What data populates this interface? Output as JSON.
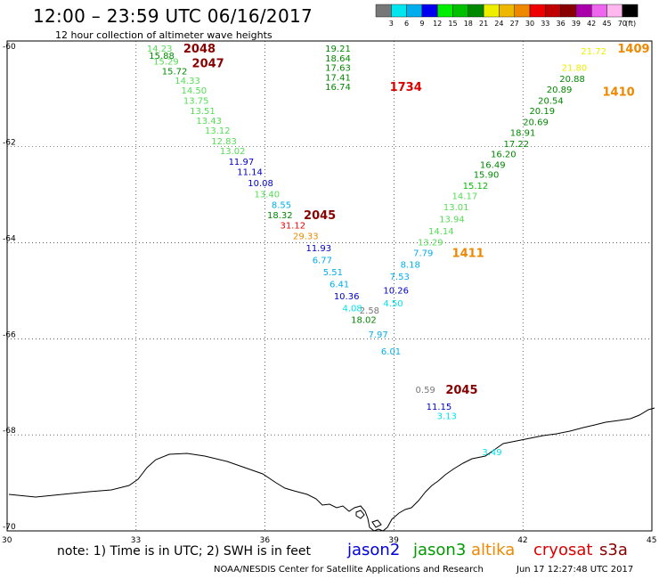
{
  "header": {
    "title": "12:00 – 23:59 UTC 06/16/2017",
    "subtitle": "12 hour collection of altimeter wave heights"
  },
  "legend": {
    "unit_label": "(ft)",
    "colors": [
      "#777777",
      "#00e5ee",
      "#00aeee",
      "#0000ee",
      "#00ee00",
      "#00c000",
      "#008800",
      "#eeee00",
      "#eeb800",
      "#ee8800",
      "#ee0000",
      "#c00000",
      "#880000",
      "#aa00aa",
      "#ee66ee",
      "#ffb8ee",
      "#000000"
    ],
    "labels": [
      "3",
      "6",
      "9",
      "12",
      "15",
      "18",
      "21",
      "24",
      "27",
      "30",
      "33",
      "36",
      "39",
      "42",
      "45",
      "70"
    ]
  },
  "axes": {
    "lat_labels": [
      {
        "lat": -60,
        "text": "-60"
      },
      {
        "lat": -62,
        "text": "-62"
      },
      {
        "lat": -64,
        "text": "-64"
      },
      {
        "lat": -66,
        "text": "-66"
      },
      {
        "lat": -68,
        "text": "-68"
      },
      {
        "lat": -70,
        "text": "-70"
      }
    ],
    "lon_labels": [
      {
        "lon": 30,
        "text": "30"
      },
      {
        "lon": 33,
        "text": "33"
      },
      {
        "lon": 36,
        "text": "36"
      },
      {
        "lon": 39,
        "text": "39"
      },
      {
        "lon": 42,
        "text": "42"
      },
      {
        "lon": 45,
        "text": "45"
      }
    ]
  },
  "footer": {
    "note": "note: 1) Time is in UTC; 2) SWH is in feet",
    "satellites": [
      {
        "name": "jason2",
        "color": "#0000dd"
      },
      {
        "name": "jason3",
        "color": "#009900"
      },
      {
        "name": "altika",
        "color": "#ee8800"
      },
      {
        "name": "cryosat",
        "color": "#dd0000"
      },
      {
        "name": "s3a",
        "color": "#880000"
      }
    ],
    "credit": "NOAA/NESDIS Center for Satellite Applications and Research",
    "timestamp": "Jun 17 12:27:48 UTC 2017"
  },
  "observations": [
    {
      "lon": 33.25,
      "lat": -59.95,
      "text": "14.23",
      "color": "#55dd55"
    },
    {
      "lon": 33.3,
      "lat": -60.1,
      "text": "15.88",
      "color": "#008800"
    },
    {
      "lon": 33.4,
      "lat": -60.22,
      "text": "15.29",
      "color": "#55dd55"
    },
    {
      "lon": 33.6,
      "lat": -60.42,
      "text": "15.72",
      "color": "#008800"
    },
    {
      "lon": 33.9,
      "lat": -60.62,
      "text": "14.33",
      "color": "#55dd55"
    },
    {
      "lon": 34.05,
      "lat": -60.82,
      "text": "14.50",
      "color": "#55dd55"
    },
    {
      "lon": 34.1,
      "lat": -61.03,
      "text": "13.75",
      "color": "#55dd55"
    },
    {
      "lon": 34.25,
      "lat": -61.25,
      "text": "13.51",
      "color": "#55dd55"
    },
    {
      "lon": 34.4,
      "lat": -61.45,
      "text": "13.43",
      "color": "#55dd55"
    },
    {
      "lon": 34.6,
      "lat": -61.65,
      "text": "13.12",
      "color": "#55dd55"
    },
    {
      "lon": 34.75,
      "lat": -61.88,
      "text": "12.83",
      "color": "#55dd55"
    },
    {
      "lon": 34.95,
      "lat": -62.08,
      "text": "13.02",
      "color": "#55dd55"
    },
    {
      "lon": 35.15,
      "lat": -62.3,
      "text": "11.97",
      "color": "#0000cc"
    },
    {
      "lon": 35.35,
      "lat": -62.52,
      "text": "11.14",
      "color": "#0000cc"
    },
    {
      "lon": 35.6,
      "lat": -62.75,
      "text": "10.08",
      "color": "#0000cc"
    },
    {
      "lon": 35.75,
      "lat": -62.98,
      "text": "13.40",
      "color": "#55dd55"
    },
    {
      "lon": 36.15,
      "lat": -63.2,
      "text": "8.55",
      "color": "#00aeee"
    },
    {
      "lon": 36.05,
      "lat": -63.42,
      "text": "18.32",
      "color": "#008800"
    },
    {
      "lon": 36.35,
      "lat": -63.63,
      "text": "31.12",
      "color": "#ee0000"
    },
    {
      "lon": 36.65,
      "lat": -63.85,
      "text": "29.33",
      "color": "#ee8800"
    },
    {
      "lon": 36.95,
      "lat": -64.1,
      "text": "11.93",
      "color": "#0000cc"
    },
    {
      "lon": 37.1,
      "lat": -64.35,
      "text": "6.77",
      "color": "#00aeee"
    },
    {
      "lon": 37.35,
      "lat": -64.6,
      "text": "5.51",
      "color": "#00aeee"
    },
    {
      "lon": 37.5,
      "lat": -64.85,
      "text": "6.41",
      "color": "#00aeee"
    },
    {
      "lon": 37.6,
      "lat": -65.1,
      "text": "10.36",
      "color": "#0000cc"
    },
    {
      "lon": 37.8,
      "lat": -65.35,
      "text": "4.08",
      "color": "#00e5ee"
    },
    {
      "lon": 38.2,
      "lat": -65.4,
      "text": "2.58",
      "color": "#777777"
    },
    {
      "lon": 38.0,
      "lat": -65.6,
      "text": "18.02",
      "color": "#008800"
    },
    {
      "lon": 38.4,
      "lat": -65.9,
      "text": "7.97",
      "color": "#00aeee"
    },
    {
      "lon": 38.7,
      "lat": -66.25,
      "text": "6.01",
      "color": "#00aeee"
    },
    {
      "lon": 39.5,
      "lat": -67.05,
      "text": "0.59",
      "color": "#777777"
    },
    {
      "lon": 39.75,
      "lat": -67.4,
      "text": "11.15",
      "color": "#0000cc"
    },
    {
      "lon": 40.0,
      "lat": -67.6,
      "text": "3.13",
      "color": "#00e5ee"
    },
    {
      "lon": 41.05,
      "lat": -68.35,
      "text": "3.49",
      "color": "#00e5ee"
    },
    {
      "lon": 38.75,
      "lat": -65.25,
      "text": "4.50",
      "color": "#00e5ee"
    },
    {
      "lon": 38.75,
      "lat": -64.98,
      "text": "10.26",
      "color": "#0000cc"
    },
    {
      "lon": 38.9,
      "lat": -64.7,
      "text": "7.53",
      "color": "#00aeee"
    },
    {
      "lon": 39.15,
      "lat": -64.45,
      "text": "8.18",
      "color": "#00aeee"
    },
    {
      "lon": 39.45,
      "lat": -64.2,
      "text": "7.79",
      "color": "#00aeee"
    },
    {
      "lon": 39.55,
      "lat": -63.98,
      "text": "13.29",
      "color": "#55dd55"
    },
    {
      "lon": 39.8,
      "lat": -63.75,
      "text": "14.14",
      "color": "#55dd55"
    },
    {
      "lon": 40.05,
      "lat": -63.5,
      "text": "13.94",
      "color": "#55dd55"
    },
    {
      "lon": 40.15,
      "lat": -63.25,
      "text": "13.01",
      "color": "#55dd55"
    },
    {
      "lon": 40.35,
      "lat": -63.02,
      "text": "14.17",
      "color": "#55dd55"
    },
    {
      "lon": 40.6,
      "lat": -62.8,
      "text": "15.12",
      "color": "#00c000"
    },
    {
      "lon": 40.85,
      "lat": -62.57,
      "text": "15.90",
      "color": "#008800"
    },
    {
      "lon": 41.0,
      "lat": -62.37,
      "text": "16.49",
      "color": "#008800"
    },
    {
      "lon": 41.25,
      "lat": -62.15,
      "text": "16.20",
      "color": "#008800"
    },
    {
      "lon": 41.55,
      "lat": -61.93,
      "text": "17.22",
      "color": "#008800"
    },
    {
      "lon": 41.7,
      "lat": -61.7,
      "text": "18.91",
      "color": "#008800"
    },
    {
      "lon": 42.0,
      "lat": -61.48,
      "text": "20.69",
      "color": "#008800"
    },
    {
      "lon": 42.15,
      "lat": -61.25,
      "text": "20.19",
      "color": "#008800"
    },
    {
      "lon": 42.35,
      "lat": -61.03,
      "text": "20.54",
      "color": "#008800"
    },
    {
      "lon": 42.55,
      "lat": -60.8,
      "text": "20.89",
      "color": "#008800"
    },
    {
      "lon": 42.85,
      "lat": -60.58,
      "text": "20.88",
      "color": "#008800"
    },
    {
      "lon": 42.9,
      "lat": -60.35,
      "text": "21.80",
      "color": "#eeee00"
    },
    {
      "lon": 43.35,
      "lat": -60.0,
      "text": "21.72",
      "color": "#eeee00"
    },
    {
      "lon": 37.4,
      "lat": -59.95,
      "text": "19.21",
      "color": "#008800"
    },
    {
      "lon": 37.4,
      "lat": -60.15,
      "text": "18.64",
      "color": "#008800"
    },
    {
      "lon": 37.4,
      "lat": -60.35,
      "text": "17.63",
      "color": "#008800"
    },
    {
      "lon": 37.4,
      "lat": -60.55,
      "text": "17.41",
      "color": "#008800"
    },
    {
      "lon": 37.4,
      "lat": -60.75,
      "text": "16.74",
      "color": "#008800"
    }
  ],
  "time_labels": [
    {
      "lon": 34.1,
      "lat": -59.95,
      "text": "2048",
      "color": "#880000"
    },
    {
      "lon": 34.3,
      "lat": -60.25,
      "text": "2047",
      "color": "#880000"
    },
    {
      "lon": 38.9,
      "lat": -60.75,
      "text": "1734",
      "color": "#dd0000"
    },
    {
      "lon": 36.9,
      "lat": -63.42,
      "text": "2045",
      "color": "#880000"
    },
    {
      "lon": 40.2,
      "lat": -67.05,
      "text": "2045",
      "color": "#880000"
    },
    {
      "lon": 44.2,
      "lat": -59.95,
      "text": "1409",
      "color": "#ee8800"
    },
    {
      "lon": 43.85,
      "lat": -60.85,
      "text": "1410",
      "color": "#ee8800"
    },
    {
      "lon": 40.35,
      "lat": -64.2,
      "text": "1411",
      "color": "#ee8800"
    }
  ]
}
